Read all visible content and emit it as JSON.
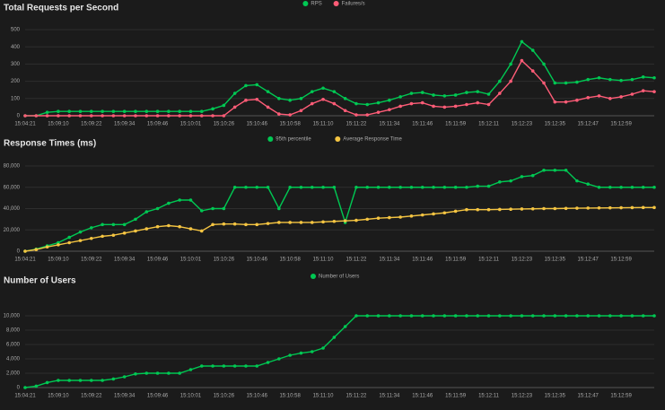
{
  "chart_data": [
    {
      "type": "line",
      "title": "Total Requests per Second",
      "categories": [
        "15:04:21",
        null,
        null,
        "15:09:10",
        null,
        null,
        "15:09:22",
        null,
        null,
        "15:09:34",
        null,
        null,
        "15:09:46",
        null,
        null,
        "15:10:01",
        null,
        null,
        "15:10:26",
        null,
        null,
        "15:10:46",
        null,
        null,
        "15:10:58",
        null,
        null,
        "15:11:10",
        null,
        null,
        "15:11:22",
        null,
        null,
        "15:11:34",
        null,
        null,
        "15:11:46",
        null,
        null,
        "15:11:59",
        null,
        null,
        "15:12:11",
        null,
        null,
        "15:12:23",
        null,
        null,
        "15:12:35",
        null,
        null,
        "15:12:47",
        null,
        null,
        "15:12:59",
        null,
        null,
        null
      ],
      "series": [
        {
          "name": "RPS",
          "color": "#00c853",
          "values": [
            0,
            0,
            20,
            25,
            25,
            25,
            25,
            25,
            25,
            25,
            25,
            25,
            25,
            25,
            25,
            25,
            25,
            40,
            60,
            130,
            175,
            180,
            140,
            100,
            90,
            100,
            140,
            160,
            140,
            100,
            70,
            65,
            75,
            90,
            110,
            130,
            135,
            120,
            115,
            120,
            135,
            140,
            125,
            200,
            300,
            430,
            380,
            300,
            190,
            190,
            195,
            210,
            220,
            210,
            205,
            210,
            225,
            220
          ]
        },
        {
          "name": "Failures/s",
          "color": "#ff5c77",
          "values": [
            0,
            0,
            0,
            0,
            0,
            0,
            0,
            0,
            0,
            0,
            0,
            0,
            0,
            0,
            0,
            0,
            0,
            0,
            0,
            50,
            90,
            95,
            50,
            10,
            5,
            30,
            70,
            95,
            70,
            30,
            5,
            5,
            20,
            35,
            55,
            70,
            75,
            55,
            50,
            55,
            65,
            75,
            65,
            130,
            200,
            320,
            260,
            190,
            80,
            80,
            90,
            105,
            115,
            100,
            110,
            125,
            145,
            140
          ]
        }
      ],
      "ylim": [
        0,
        500
      ],
      "yticks": [
        0,
        100,
        200,
        300,
        400,
        500
      ],
      "grid": true,
      "legend": "top"
    },
    {
      "type": "line",
      "title": "Response Times (ms)",
      "categories": [
        "15:04:21",
        null,
        null,
        "15:09:10",
        null,
        null,
        "15:09:22",
        null,
        null,
        "15:09:34",
        null,
        null,
        "15:09:46",
        null,
        null,
        "15:10:01",
        null,
        null,
        "15:10:26",
        null,
        null,
        "15:10:46",
        null,
        null,
        "15:10:58",
        null,
        null,
        "15:11:10",
        null,
        null,
        "15:11:22",
        null,
        null,
        "15:11:34",
        null,
        null,
        "15:11:46",
        null,
        null,
        "15:11:59",
        null,
        null,
        "15:12:11",
        null,
        null,
        "15:12:23",
        null,
        null,
        "15:12:35",
        null,
        null,
        "15:12:47",
        null,
        null,
        "15:12:59",
        null,
        null,
        null
      ],
      "series": [
        {
          "name": "95th percentile",
          "color": "#00c853",
          "values": [
            0,
            2000,
            5000,
            8000,
            13000,
            18000,
            22000,
            25000,
            25000,
            25000,
            30000,
            37000,
            40000,
            45000,
            48000,
            48000,
            38000,
            40000,
            40000,
            60000,
            60000,
            60000,
            60000,
            40000,
            60000,
            60000,
            60000,
            60000,
            60000,
            27000,
            60000,
            60000,
            60000,
            60000,
            60000,
            60000,
            60000,
            60000,
            60000,
            60000,
            60000,
            61000,
            61000,
            65000,
            66000,
            70000,
            71000,
            76000,
            76000,
            76000,
            66000,
            63000,
            60000,
            60000,
            60000,
            60000,
            60000,
            60000
          ]
        },
        {
          "name": "Average Response Time",
          "color": "#f5c542",
          "values": [
            0,
            1500,
            4000,
            6000,
            8000,
            10000,
            12000,
            14000,
            15000,
            17000,
            19000,
            21000,
            23000,
            24000,
            23000,
            21000,
            19000,
            25000,
            25500,
            25500,
            25000,
            25000,
            26000,
            27000,
            27000,
            27000,
            27000,
            27500,
            28000,
            28500,
            29000,
            30000,
            31000,
            31500,
            32000,
            33000,
            34000,
            35000,
            36000,
            37500,
            39000,
            39000,
            39000,
            39200,
            39400,
            39600,
            39800,
            40000,
            40000,
            40200,
            40400,
            40500,
            40600,
            40700,
            40800,
            40900,
            41000,
            41000
          ]
        }
      ],
      "ylim": [
        0,
        80000
      ],
      "yticks": [
        0,
        {
          "value": 20000,
          "label": "20,000"
        },
        {
          "value": 40000,
          "label": "40,000"
        },
        {
          "value": 60000,
          "label": "60,000"
        },
        {
          "value": 80000,
          "label": "80,000"
        }
      ],
      "grid": true,
      "legend": "top"
    },
    {
      "type": "line",
      "title": "Number of Users",
      "categories": [
        "15:04:21",
        null,
        null,
        "15:09:10",
        null,
        null,
        "15:09:22",
        null,
        null,
        "15:09:34",
        null,
        null,
        "15:09:46",
        null,
        null,
        "15:10:01",
        null,
        null,
        "15:10:26",
        null,
        null,
        "15:10:46",
        null,
        null,
        "15:10:58",
        null,
        null,
        "15:11:10",
        null,
        null,
        "15:11:22",
        null,
        null,
        "15:11:34",
        null,
        null,
        "15:11:46",
        null,
        null,
        "15:11:59",
        null,
        null,
        "15:12:11",
        null,
        null,
        "15:12:23",
        null,
        null,
        "15:12:35",
        null,
        null,
        "15:12:47",
        null,
        null,
        "15:12:59",
        null,
        null,
        null
      ],
      "series": [
        {
          "name": "Number of Users",
          "color": "#00c853",
          "values": [
            0,
            200,
            700,
            1000,
            1000,
            1000,
            1000,
            1000,
            1200,
            1500,
            1900,
            2000,
            2000,
            2000,
            2000,
            2500,
            3000,
            3000,
            3000,
            3000,
            3000,
            3000,
            3500,
            4000,
            4500,
            4800,
            5000,
            5500,
            7000,
            8500,
            10000,
            10000,
            10000,
            10000,
            10000,
            10000,
            10000,
            10000,
            10000,
            10000,
            10000,
            10000,
            10000,
            10000,
            10000,
            10000,
            10000,
            10000,
            10000,
            10000,
            10000,
            10000,
            10000,
            10000,
            10000,
            10000,
            10000,
            10000
          ]
        }
      ],
      "ylim": [
        0,
        12000
      ],
      "yticks": [
        0,
        {
          "value": 2000,
          "label": "2,000"
        },
        {
          "value": 4000,
          "label": "4,000"
        },
        {
          "value": 6000,
          "label": "6,000"
        },
        {
          "value": 8000,
          "label": "8,000"
        },
        {
          "value": 10000,
          "label": "10,000"
        }
      ],
      "grid": true,
      "legend": "top"
    }
  ]
}
